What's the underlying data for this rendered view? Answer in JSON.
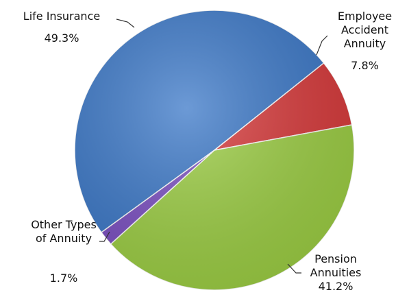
{
  "chart_data": {
    "type": "pie",
    "categories": [
      "Life Insurance",
      "Employee Accident Annuity",
      "Pension Annuities",
      "Other Types of Annuity"
    ],
    "values": [
      49.3,
      7.8,
      41.2,
      1.7
    ],
    "value_labels": [
      "49.3%",
      "7.8%",
      "41.2%",
      "1.7%"
    ],
    "colors": [
      "#3b78c8",
      "#d8393a",
      "#9dcf44",
      "#7b4fc2"
    ]
  }
}
